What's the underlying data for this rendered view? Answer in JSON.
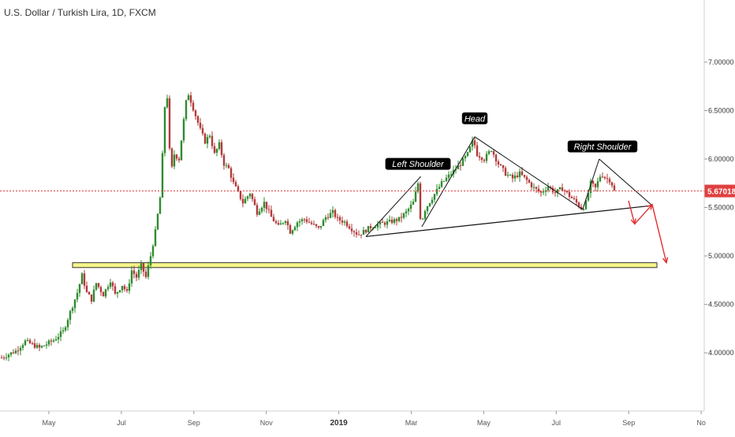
{
  "chart_data": {
    "type": "candlestick",
    "title": "U.S. Dollar / Turkish Lira, 1D, FXCM",
    "x_ticks": [
      "May",
      "Jul",
      "Sep",
      "Nov",
      "2019",
      "Mar",
      "May",
      "Jul",
      "Sep",
      "No"
    ],
    "y_ticks": [
      "4.00000",
      "4.50000",
      "5.00000",
      "5.50000",
      "6.00000",
      "6.50000",
      "7.00000"
    ],
    "ylim": [
      3.7,
      7.3
    ],
    "last_price": 5.67018,
    "last_price_label": "5.67018",
    "colors": {
      "up": "#2e8b2e",
      "down": "#b23a3a",
      "price_line": "#e04040",
      "arrow": "#e03030",
      "zone": "#f6f58a",
      "trendline": "#111111"
    },
    "series": [
      {
        "x": 0,
        "y": 3.95
      },
      {
        "x": 3,
        "y": 4.02
      },
      {
        "x": 5,
        "y": 4.12
      },
      {
        "x": 8,
        "y": 4.05
      },
      {
        "x": 11,
        "y": 4.13
      },
      {
        "x": 13,
        "y": 4.22
      },
      {
        "x": 14.5,
        "y": 4.42
      },
      {
        "x": 16,
        "y": 4.62
      },
      {
        "x": 17,
        "y": 4.8
      },
      {
        "x": 18,
        "y": 4.62
      },
      {
        "x": 19,
        "y": 4.55
      },
      {
        "x": 20,
        "y": 4.72
      },
      {
        "x": 21.5,
        "y": 4.6
      },
      {
        "x": 23,
        "y": 4.75
      },
      {
        "x": 24,
        "y": 4.6
      },
      {
        "x": 25.5,
        "y": 4.7
      },
      {
        "x": 26.5,
        "y": 4.62
      },
      {
        "x": 27.5,
        "y": 4.85
      },
      {
        "x": 28.5,
        "y": 4.78
      },
      {
        "x": 29.5,
        "y": 4.9
      },
      {
        "x": 30.5,
        "y": 4.78
      },
      {
        "x": 31.5,
        "y": 5.0
      },
      {
        "x": 32.5,
        "y": 5.25
      },
      {
        "x": 33.5,
        "y": 5.6
      },
      {
        "x": 34.3,
        "y": 6.3
      },
      {
        "x": 34.8,
        "y": 6.9
      },
      {
        "x": 35.3,
        "y": 6.25
      },
      {
        "x": 35.8,
        "y": 5.85
      },
      {
        "x": 36.5,
        "y": 6.05
      },
      {
        "x": 37.5,
        "y": 6.0
      },
      {
        "x": 38.5,
        "y": 6.4
      },
      {
        "x": 39.3,
        "y": 6.7
      },
      {
        "x": 40,
        "y": 6.6
      },
      {
        "x": 41,
        "y": 6.45
      },
      {
        "x": 42,
        "y": 6.3
      },
      {
        "x": 43,
        "y": 6.18
      },
      {
        "x": 44,
        "y": 6.25
      },
      {
        "x": 45,
        "y": 6.05
      },
      {
        "x": 46,
        "y": 6.15
      },
      {
        "x": 47,
        "y": 5.95
      },
      {
        "x": 48,
        "y": 5.9
      },
      {
        "x": 49,
        "y": 5.75
      },
      {
        "x": 50,
        "y": 5.65
      },
      {
        "x": 51,
        "y": 5.55
      },
      {
        "x": 52.5,
        "y": 5.65
      },
      {
        "x": 54,
        "y": 5.45
      },
      {
        "x": 55.5,
        "y": 5.55
      },
      {
        "x": 57,
        "y": 5.4
      },
      {
        "x": 58.5,
        "y": 5.3
      },
      {
        "x": 60,
        "y": 5.38
      },
      {
        "x": 61,
        "y": 5.25
      },
      {
        "x": 62.5,
        "y": 5.35
      },
      {
        "x": 64,
        "y": 5.38
      },
      {
        "x": 65.5,
        "y": 5.33
      },
      {
        "x": 67,
        "y": 5.28
      },
      {
        "x": 68.5,
        "y": 5.4
      },
      {
        "x": 70,
        "y": 5.45
      },
      {
        "x": 71,
        "y": 5.38
      },
      {
        "x": 72.5,
        "y": 5.35
      },
      {
        "x": 74,
        "y": 5.28
      },
      {
        "x": 75.3,
        "y": 5.22
      },
      {
        "x": 76.5,
        "y": 5.25
      },
      {
        "x": 78,
        "y": 5.3
      },
      {
        "x": 80,
        "y": 5.33
      },
      {
        "x": 82,
        "y": 5.35
      },
      {
        "x": 84,
        "y": 5.38
      },
      {
        "x": 85.5,
        "y": 5.45
      },
      {
        "x": 87,
        "y": 5.55
      },
      {
        "x": 88,
        "y": 5.75
      },
      {
        "x": 88.6,
        "y": 5.33
      },
      {
        "x": 89.5,
        "y": 5.48
      },
      {
        "x": 91,
        "y": 5.6
      },
      {
        "x": 93,
        "y": 5.75
      },
      {
        "x": 95,
        "y": 5.85
      },
      {
        "x": 97,
        "y": 5.95
      },
      {
        "x": 98.5,
        "y": 6.05
      },
      {
        "x": 99.7,
        "y": 6.2
      },
      {
        "x": 100.5,
        "y": 6.05
      },
      {
        "x": 102,
        "y": 6.0
      },
      {
        "x": 103.5,
        "y": 6.1
      },
      {
        "x": 105,
        "y": 5.95
      },
      {
        "x": 106.5,
        "y": 5.85
      },
      {
        "x": 108,
        "y": 5.8
      },
      {
        "x": 109.5,
        "y": 5.85
      },
      {
        "x": 111,
        "y": 5.78
      },
      {
        "x": 112.5,
        "y": 5.7
      },
      {
        "x": 114,
        "y": 5.65
      },
      {
        "x": 115.5,
        "y": 5.72
      },
      {
        "x": 117,
        "y": 5.65
      },
      {
        "x": 118.5,
        "y": 5.7
      },
      {
        "x": 120,
        "y": 5.62
      },
      {
        "x": 121.5,
        "y": 5.55
      },
      {
        "x": 122.7,
        "y": 5.48
      },
      {
        "x": 123.5,
        "y": 5.55
      },
      {
        "x": 124.5,
        "y": 5.75
      },
      {
        "x": 125.5,
        "y": 5.7
      },
      {
        "x": 126.7,
        "y": 5.85
      },
      {
        "x": 127.7,
        "y": 5.8
      },
      {
        "x": 128.7,
        "y": 5.78
      },
      {
        "x": 129.5,
        "y": 5.67
      }
    ],
    "support_zone": {
      "y_low": 4.88,
      "y_high": 4.93,
      "x_start": 15,
      "x_end": 138.5
    },
    "neckline": {
      "x1": 77,
      "y1": 5.2,
      "x2": 137.5,
      "y2": 5.52
    },
    "pattern_lines": [
      {
        "x1": 77,
        "y1": 5.2,
        "x2": 88.6,
        "y2": 5.82
      },
      {
        "x1": 88.8,
        "y1": 5.3,
        "x2": 100,
        "y2": 6.23
      },
      {
        "x1": 100,
        "y1": 6.23,
        "x2": 122.8,
        "y2": 5.48
      },
      {
        "x1": 122.8,
        "y1": 5.48,
        "x2": 126.3,
        "y2": 6.0
      },
      {
        "x1": 126.3,
        "y1": 6.0,
        "x2": 137.5,
        "y2": 5.52
      }
    ],
    "arrows": [
      {
        "x1": 132.5,
        "y1": 5.57,
        "x2": 133.8,
        "y2": 5.33
      },
      {
        "x1": 133.8,
        "y1": 5.33,
        "x2": 137.5,
        "y2": 5.53
      },
      {
        "x1": 137.5,
        "y1": 5.53,
        "x2": 140.5,
        "y2": 4.93
      }
    ],
    "annotations": [
      {
        "text": "Left Shoulder",
        "x": 88,
        "y": 5.95
      },
      {
        "text": "Head",
        "x": 100,
        "y": 6.42
      },
      {
        "text": "Right Shoulder",
        "x": 127,
        "y": 6.13
      }
    ]
  }
}
